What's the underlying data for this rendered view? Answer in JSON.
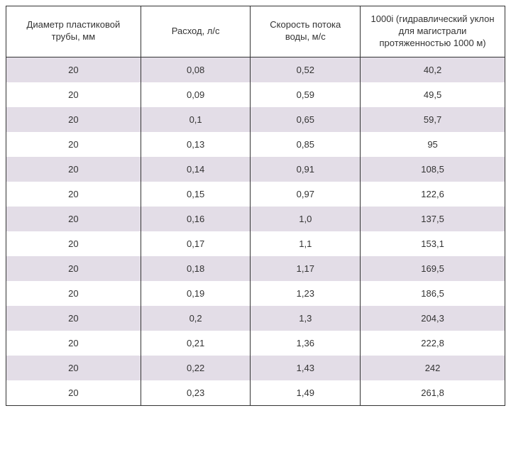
{
  "table": {
    "columns": [
      "Диаметр пластиковой трубы, мм",
      "Расход, л/с",
      "Скорость потока воды, м/с",
      "1000i  (гидравлический уклон для магистрали протяженностью 1000 м)"
    ],
    "column_widths_pct": [
      27,
      22,
      22,
      29
    ],
    "header_fontsize": 13,
    "cell_fontsize": 13,
    "border_color": "#333333",
    "text_color": "#333333",
    "header_bg": "#ffffff",
    "row_bg_odd": "#e3dde7",
    "row_bg_even": "#ffffff",
    "rows": [
      [
        "20",
        "0,08",
        "0,52",
        "40,2"
      ],
      [
        "20",
        "0,09",
        "0,59",
        "49,5"
      ],
      [
        "20",
        "0,1",
        "0,65",
        "59,7"
      ],
      [
        "20",
        "0,13",
        "0,85",
        "95"
      ],
      [
        "20",
        "0,14",
        "0,91",
        "108,5"
      ],
      [
        "20",
        "0,15",
        "0,97",
        "122,6"
      ],
      [
        "20",
        "0,16",
        "1,0",
        "137,5"
      ],
      [
        "20",
        "0,17",
        "1,1",
        "153,1"
      ],
      [
        "20",
        "0,18",
        "1,17",
        "169,5"
      ],
      [
        "20",
        "0,19",
        "1,23",
        "186,5"
      ],
      [
        "20",
        "0,2",
        "1,3",
        "204,3"
      ],
      [
        "20",
        "0,21",
        "1,36",
        "222,8"
      ],
      [
        "20",
        "0,22",
        "1,43",
        "242"
      ],
      [
        "20",
        "0,23",
        "1,49",
        "261,8"
      ]
    ]
  }
}
